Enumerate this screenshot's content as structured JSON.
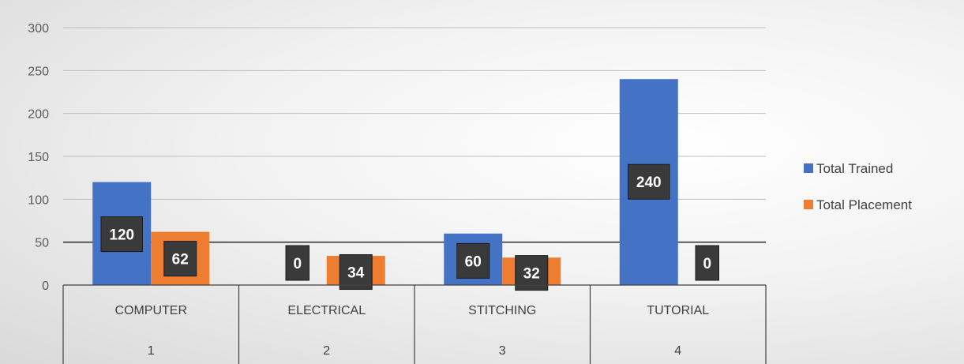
{
  "chart_data": {
    "type": "bar",
    "title": "",
    "xlabel": "",
    "ylabel": "",
    "ylim": [
      0,
      300
    ],
    "yticks": [
      0,
      50,
      100,
      150,
      200,
      250,
      300
    ],
    "categories": [
      "COMPUTER",
      "ELECTRICAL",
      "STITCHING",
      "TUTORIAL"
    ],
    "category_index": [
      "1",
      "2",
      "3",
      "4"
    ],
    "series": [
      {
        "name": "Total Trained",
        "color": "#4472c4",
        "values": [
          120,
          0,
          60,
          240
        ]
      },
      {
        "name": "Total Placement",
        "color": "#ed7d31",
        "values": [
          62,
          34,
          32,
          0
        ]
      }
    ],
    "grid": true,
    "legend_position": "right",
    "data_labels": true
  }
}
